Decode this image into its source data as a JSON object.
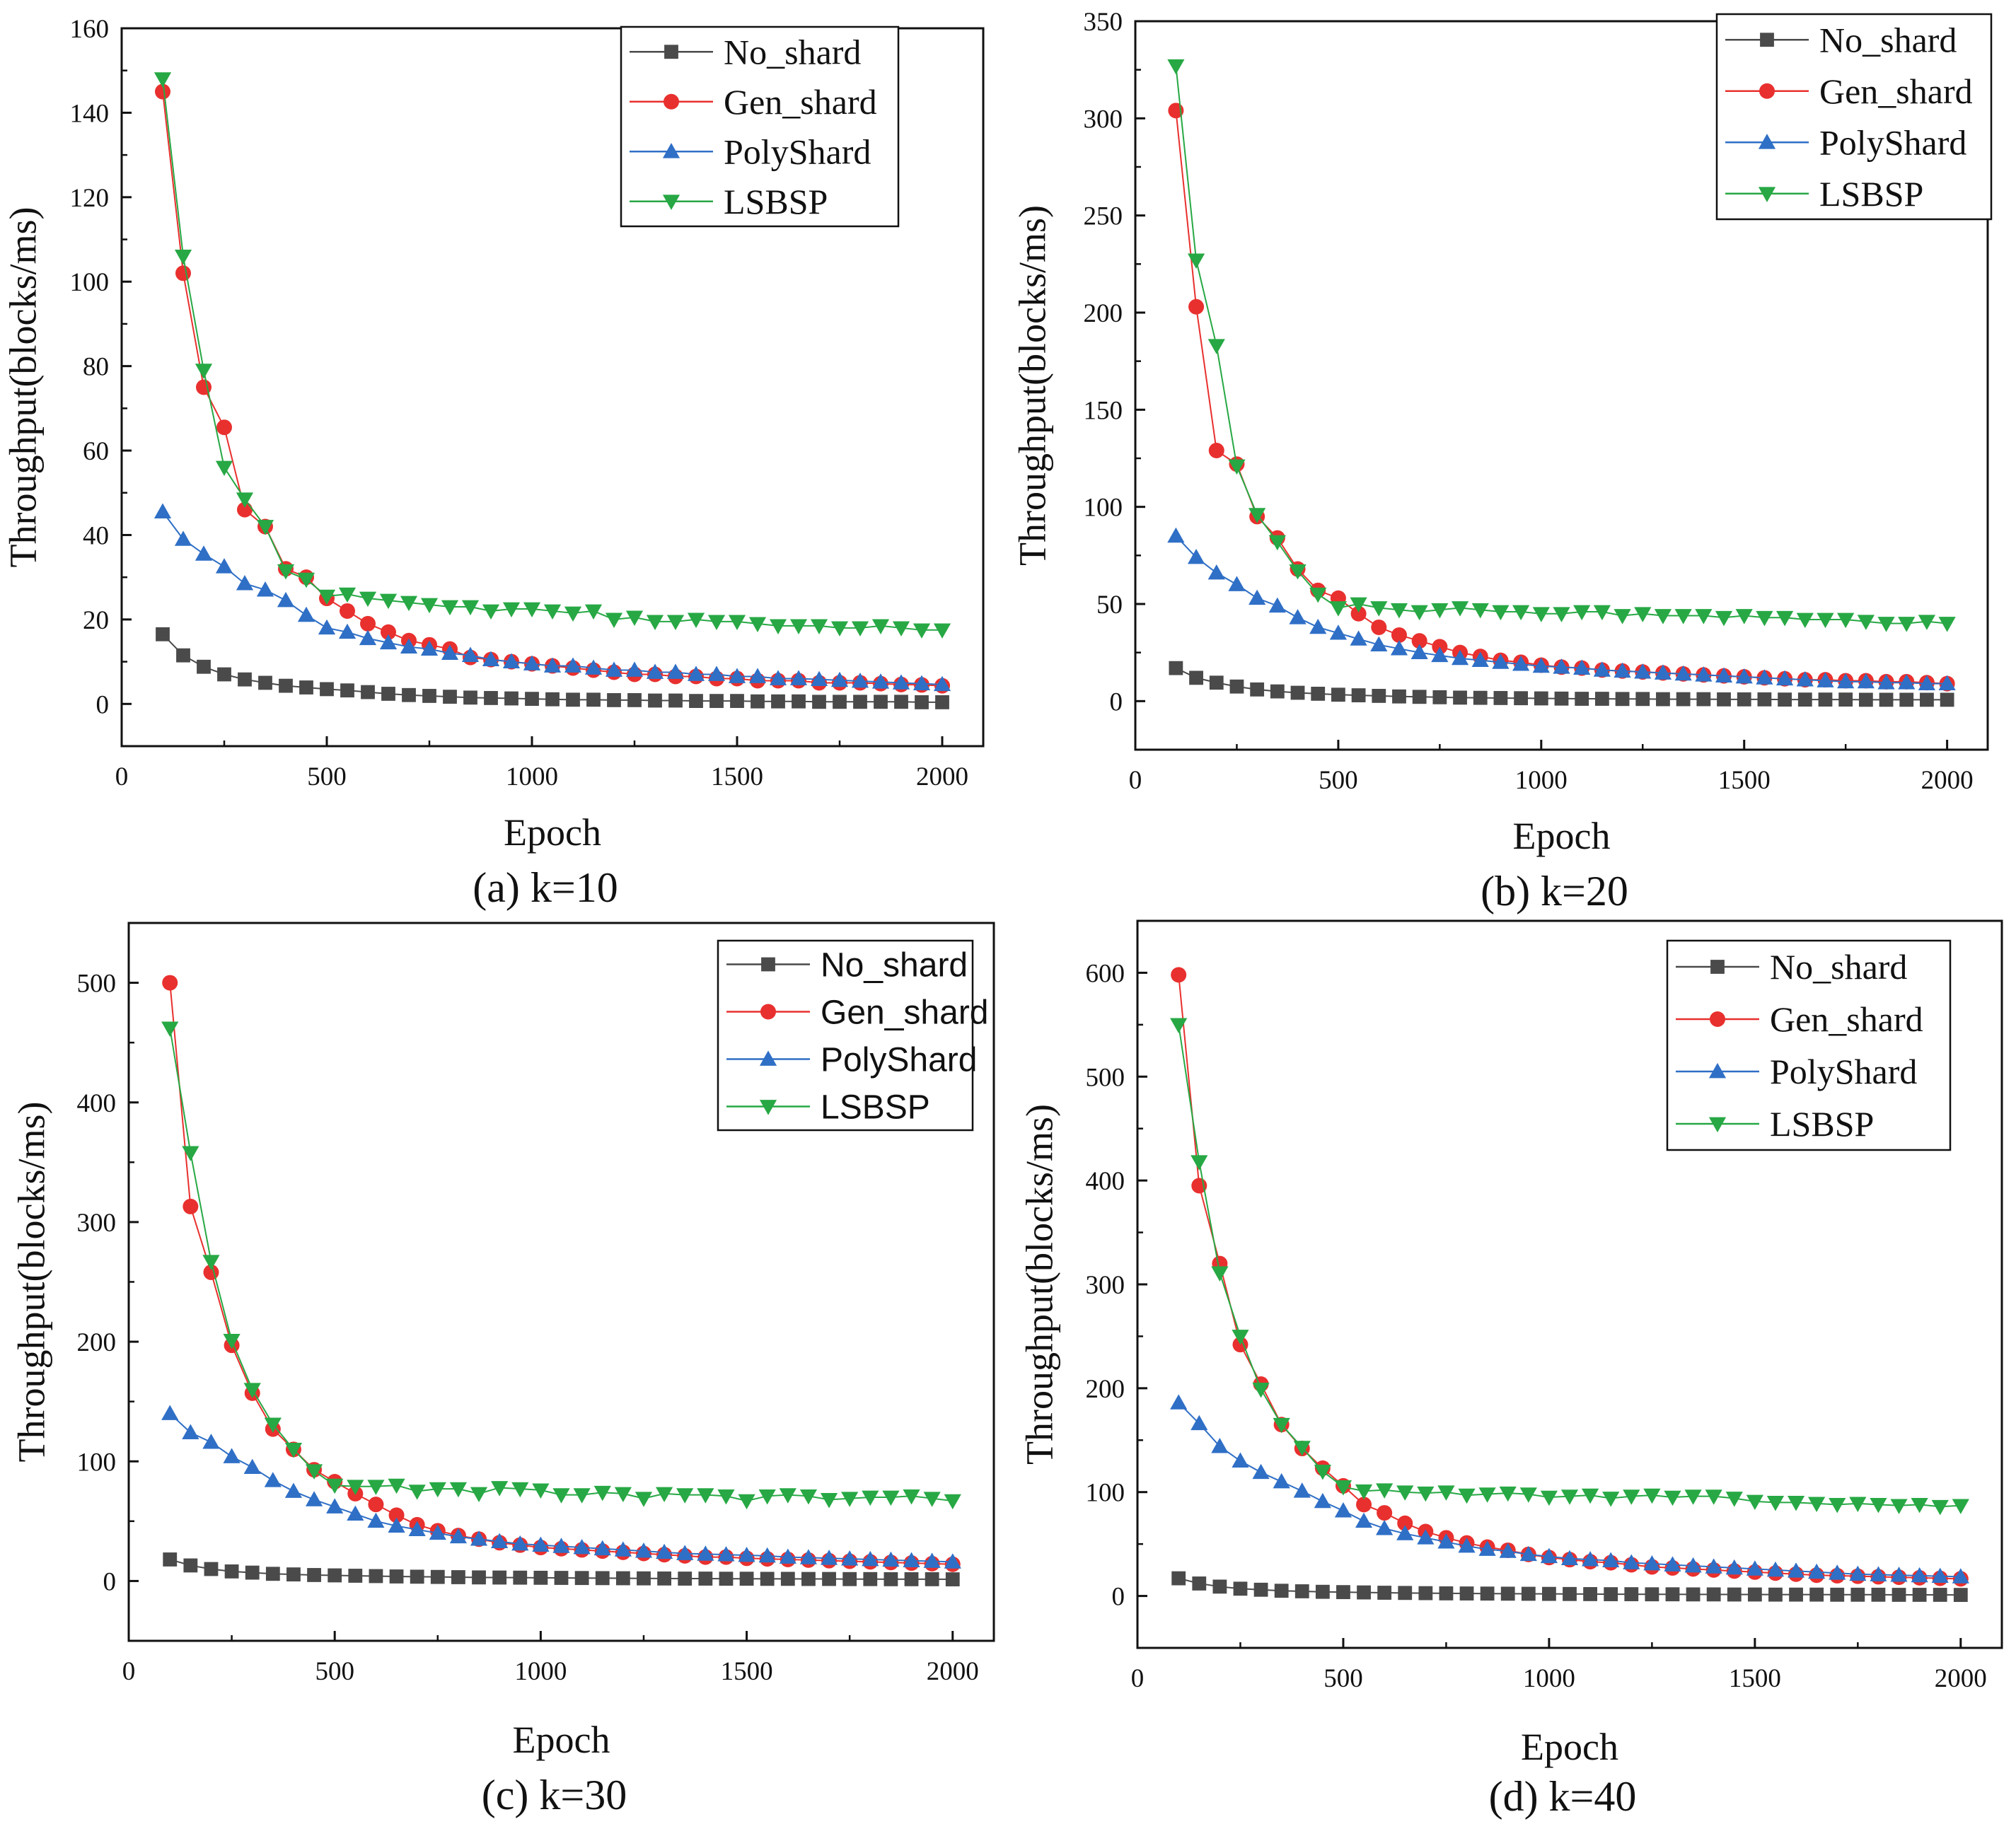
{
  "colors": {
    "No_shard": "#4a4a4a",
    "Gen_shard": "#e8302e",
    "PolyShard": "#2f6fc6",
    "LSBSP": "#27a844"
  },
  "chart_data": [
    {
      "type": "line",
      "caption": "(a) k=10",
      "xlabel": "Epoch",
      "ylabel": "Throughput(blocks/ms)",
      "xlim": [
        0,
        2100
      ],
      "ylim": [
        -10,
        160
      ],
      "xticks": [
        0,
        500,
        1000,
        1500,
        2000
      ],
      "yticks": [
        0,
        20,
        40,
        60,
        80,
        100,
        120,
        140,
        160
      ],
      "x": [
        100,
        150,
        200,
        250,
        300,
        350,
        400,
        450,
        500,
        550,
        600,
        650,
        700,
        750,
        800,
        850,
        900,
        950,
        1000,
        1050,
        1100,
        1150,
        1200,
        1250,
        1300,
        1350,
        1400,
        1450,
        1500,
        1550,
        1600,
        1650,
        1700,
        1750,
        1800,
        1850,
        1900,
        1950,
        2000
      ],
      "series": [
        {
          "name": "No_shard",
          "values": [
            16.5,
            11.5,
            8.8,
            7,
            5.8,
            5,
            4.3,
            3.9,
            3.5,
            3.2,
            2.8,
            2.4,
            2.1,
            1.9,
            1.7,
            1.5,
            1.4,
            1.3,
            1.2,
            1.1,
            1.0,
            1.0,
            0.9,
            0.9,
            0.8,
            0.8,
            0.7,
            0.7,
            0.7,
            0.6,
            0.6,
            0.6,
            0.5,
            0.5,
            0.5,
            0.5,
            0.5,
            0.4,
            0.4
          ]
        },
        {
          "name": "Gen_shard",
          "values": [
            145,
            102,
            75,
            65.5,
            46,
            42,
            32,
            30,
            25,
            22,
            19,
            17,
            15,
            14,
            13,
            11,
            10.5,
            10,
            9.5,
            9,
            8.5,
            8,
            7.5,
            7,
            7,
            6.5,
            6.5,
            6,
            6,
            5.5,
            5.5,
            5.5,
            5,
            5,
            5,
            4.8,
            4.6,
            4.5,
            4.3
          ]
        },
        {
          "name": "PolyShard",
          "values": [
            45.5,
            39,
            35.5,
            32.5,
            28.5,
            27,
            24.5,
            21,
            18,
            17,
            15.5,
            14.5,
            13.5,
            13,
            12,
            11.5,
            10.5,
            10,
            9.5,
            9,
            9,
            8.5,
            8,
            8,
            7.5,
            7.5,
            7,
            7,
            6.5,
            6.5,
            6,
            6,
            5.8,
            5.6,
            5.4,
            5.2,
            5,
            4.8,
            4.6
          ]
        },
        {
          "name": "LSBSP",
          "values": [
            148,
            106,
            79,
            56,
            48.5,
            42,
            31.5,
            29.5,
            25.5,
            26,
            25,
            24.5,
            24,
            23.5,
            23,
            23,
            22,
            22.5,
            22.5,
            22,
            21.5,
            22,
            20,
            20.5,
            19.5,
            19.5,
            20,
            19.5,
            19.5,
            19,
            18.5,
            18.5,
            18.5,
            18,
            18,
            18.5,
            18,
            17.5,
            17.5
          ]
        }
      ]
    },
    {
      "type": "line",
      "caption": "(b) k=20",
      "xlabel": "Epoch",
      "ylabel": "Throughput(blocks/ms)",
      "xlim": [
        0,
        2100
      ],
      "ylim": [
        -25,
        350
      ],
      "xticks": [
        0,
        500,
        1000,
        1500,
        2000
      ],
      "yticks": [
        0,
        50,
        100,
        150,
        200,
        250,
        300,
        350
      ],
      "x": [
        100,
        150,
        200,
        250,
        300,
        350,
        400,
        450,
        500,
        550,
        600,
        650,
        700,
        750,
        800,
        850,
        900,
        950,
        1000,
        1050,
        1100,
        1150,
        1200,
        1250,
        1300,
        1350,
        1400,
        1450,
        1500,
        1550,
        1600,
        1650,
        1700,
        1750,
        1800,
        1850,
        1900,
        1950,
        2000
      ],
      "series": [
        {
          "name": "No_shard",
          "values": [
            17,
            12,
            9.5,
            7.5,
            6,
            5,
            4.3,
            3.8,
            3.3,
            3,
            2.7,
            2.4,
            2.2,
            2,
            1.8,
            1.7,
            1.6,
            1.5,
            1.4,
            1.3,
            1.2,
            1.2,
            1.1,
            1.1,
            1,
            1,
            1,
            0.9,
            0.9,
            0.9,
            0.8,
            0.8,
            0.8,
            0.8,
            0.7,
            0.7,
            0.7,
            0.7,
            0.7
          ]
        },
        {
          "name": "Gen_shard",
          "values": [
            304,
            203,
            129,
            122,
            95,
            84,
            68,
            57,
            53,
            45,
            38,
            34,
            31,
            28,
            25,
            23,
            21,
            20,
            18.5,
            17.5,
            17,
            16,
            15.5,
            15,
            14.5,
            14,
            13.5,
            13,
            12.5,
            12,
            11.5,
            11,
            11,
            10.5,
            10.5,
            10,
            10,
            9.5,
            9
          ]
        },
        {
          "name": "PolyShard",
          "values": [
            85,
            74,
            66,
            60,
            53,
            49,
            43,
            38,
            35,
            32,
            29,
            27,
            25,
            23.5,
            22,
            21,
            20,
            19,
            18,
            17.5,
            17,
            16,
            15.5,
            15,
            14.5,
            14,
            13.5,
            13,
            12.5,
            12,
            11.5,
            11,
            10.5,
            10,
            10,
            9.5,
            9.5,
            9,
            9
          ]
        },
        {
          "name": "LSBSP",
          "values": [
            327,
            227,
            183,
            121,
            96,
            82,
            67,
            55,
            48,
            50,
            48,
            47,
            46,
            47,
            48,
            47,
            46,
            46,
            45,
            45,
            46,
            46,
            44,
            45,
            44,
            44,
            44,
            43,
            44,
            43,
            43,
            42,
            42,
            42,
            41,
            40,
            40,
            41,
            40
          ]
        }
      ]
    },
    {
      "type": "line",
      "caption": "(c) k=30",
      "xlabel": "Epoch",
      "ylabel": "Throughput(blocks/ms)",
      "xlim": [
        0,
        2100
      ],
      "ylim": [
        -50,
        550
      ],
      "xticks": [
        0,
        500,
        1000,
        1500,
        2000
      ],
      "yticks": [
        0,
        100,
        200,
        300,
        400,
        500
      ],
      "x": [
        100,
        150,
        200,
        250,
        300,
        350,
        400,
        450,
        500,
        550,
        600,
        650,
        700,
        750,
        800,
        850,
        900,
        950,
        1000,
        1050,
        1100,
        1150,
        1200,
        1250,
        1300,
        1350,
        1400,
        1450,
        1500,
        1550,
        1600,
        1650,
        1700,
        1750,
        1800,
        1850,
        1900,
        1950,
        2000
      ],
      "series": [
        {
          "name": "No_shard",
          "values": [
            18,
            13,
            10,
            8,
            7,
            6,
            5.5,
            5,
            4.7,
            4.4,
            4.1,
            3.8,
            3.6,
            3.4,
            3.2,
            3,
            2.9,
            2.8,
            2.7,
            2.6,
            2.5,
            2.4,
            2.3,
            2.2,
            2.1,
            2,
            2,
            1.9,
            1.9,
            1.8,
            1.8,
            1.7,
            1.7,
            1.6,
            1.6,
            1.5,
            1.5,
            1.5,
            1.4
          ]
        },
        {
          "name": "Gen_shard",
          "values": [
            500,
            313,
            258,
            197,
            157,
            127,
            110,
            93,
            83,
            73,
            64,
            55,
            47,
            42,
            38,
            35,
            32,
            30,
            28,
            27,
            26,
            25,
            24,
            23,
            22,
            21,
            20,
            20,
            19,
            18.5,
            18,
            17.5,
            17,
            16.5,
            16,
            15.5,
            15,
            14.5,
            14
          ]
        },
        {
          "name": "PolyShard",
          "values": [
            140,
            124,
            116,
            104,
            95,
            84,
            75,
            68,
            62,
            56,
            50,
            46,
            43,
            40,
            37,
            35,
            33,
            31,
            30,
            29,
            28,
            27,
            26,
            25,
            24,
            23,
            22.5,
            22,
            21.5,
            21,
            20,
            19.5,
            19,
            18.5,
            18,
            17.5,
            17,
            16.5,
            16
          ]
        },
        {
          "name": "LSBSP",
          "values": [
            462,
            358,
            267,
            201,
            160,
            131,
            110,
            92,
            80,
            79,
            79,
            80,
            75,
            77,
            77,
            73,
            78,
            77,
            76,
            72,
            72,
            74,
            73,
            69,
            73,
            72,
            72,
            71,
            67,
            71,
            72,
            71,
            68,
            69,
            70,
            70,
            71,
            69,
            67
          ]
        }
      ]
    },
    {
      "type": "line",
      "caption": "(d) k=40",
      "xlabel": "Epoch",
      "ylabel": "Throughput(blocks/ms)",
      "xlim": [
        0,
        2100
      ],
      "ylim": [
        -50,
        650
      ],
      "xticks": [
        0,
        500,
        1000,
        1500,
        2000
      ],
      "yticks": [
        0,
        100,
        200,
        300,
        400,
        500,
        600
      ],
      "x": [
        100,
        150,
        200,
        250,
        300,
        350,
        400,
        450,
        500,
        550,
        600,
        650,
        700,
        750,
        800,
        850,
        900,
        950,
        1000,
        1050,
        1100,
        1150,
        1200,
        1250,
        1300,
        1350,
        1400,
        1450,
        1500,
        1550,
        1600,
        1650,
        1700,
        1750,
        1800,
        1850,
        1900,
        1950,
        2000
      ],
      "series": [
        {
          "name": "No_shard",
          "values": [
            17,
            12,
            9,
            7,
            6,
            5,
            4.5,
            4,
            3.7,
            3.4,
            3.1,
            2.9,
            2.7,
            2.5,
            2.4,
            2.3,
            2.2,
            2.1,
            2,
            1.9,
            1.8,
            1.7,
            1.7,
            1.6,
            1.6,
            1.5,
            1.5,
            1.4,
            1.4,
            1.3,
            1.3,
            1.3,
            1.2,
            1.2,
            1.2,
            1.1,
            1.1,
            1.1,
            1
          ]
        },
        {
          "name": "Gen_shard",
          "values": [
            598,
            395,
            320,
            242,
            204,
            165,
            142,
            123,
            106,
            88,
            80,
            70,
            62,
            56,
            51,
            47,
            44,
            40,
            37,
            35,
            33,
            32,
            30,
            28,
            27,
            26,
            25,
            24,
            23,
            22,
            21,
            20,
            19.5,
            19,
            18.5,
            18,
            17.5,
            17,
            16.5
          ]
        },
        {
          "name": "PolyShard",
          "values": [
            186,
            166,
            144,
            130,
            119,
            110,
            101,
            91,
            82,
            72,
            65,
            60,
            56,
            52,
            48,
            45,
            43,
            40,
            38,
            36,
            35,
            34,
            32,
            31,
            30,
            29,
            28,
            27,
            26,
            25,
            24,
            23,
            22,
            21,
            20.5,
            20,
            19.5,
            19,
            18.5
          ]
        },
        {
          "name": "LSBSP",
          "values": [
            550,
            418,
            311,
            250,
            199,
            165,
            143,
            120,
            105,
            101,
            102,
            100,
            99,
            100,
            97,
            98,
            99,
            98,
            95,
            96,
            97,
            94,
            96,
            97,
            95,
            96,
            96,
            94,
            91,
            90,
            90,
            89,
            88,
            89,
            88,
            87,
            88,
            86,
            87
          ]
        }
      ]
    }
  ]
}
